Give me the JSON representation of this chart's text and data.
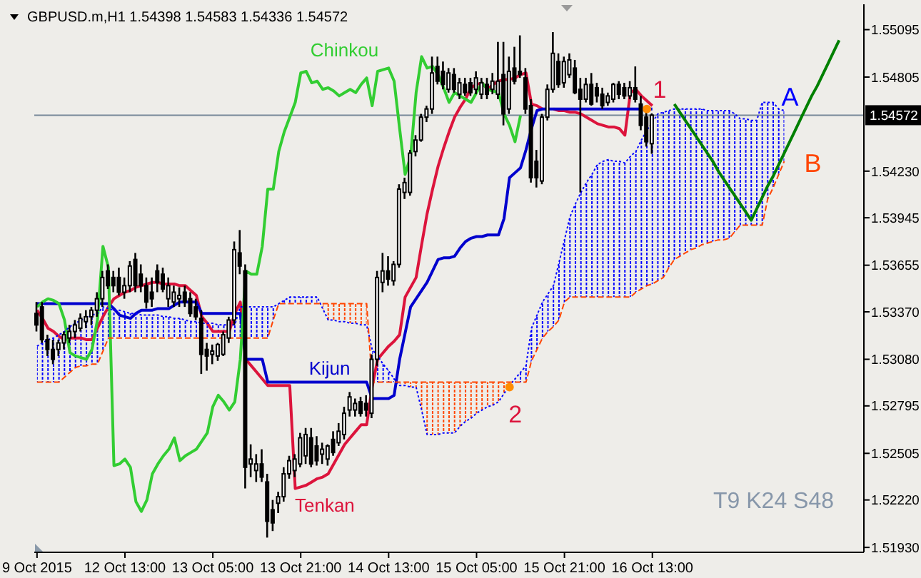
{
  "chart_data": {
    "type": "candlestick",
    "title": "GBPUSD.m,H1 1.54398 1.54583 1.54336 1.54572",
    "categories": [
      "9 Oct 2015",
      null,
      null,
      null,
      null,
      null,
      null,
      null,
      null,
      null,
      null,
      null,
      null,
      null,
      null,
      null,
      "12 Oct 13:00",
      null,
      null,
      null,
      null,
      null,
      null,
      null,
      null,
      null,
      null,
      null,
      null,
      null,
      null,
      null,
      "13 Oct 05:00",
      null,
      null,
      null,
      null,
      null,
      null,
      null,
      null,
      null,
      null,
      null,
      null,
      null,
      null,
      null,
      "13 Oct 21:00",
      null,
      null,
      null,
      null,
      null,
      null,
      null,
      null,
      null,
      null,
      null,
      null,
      null,
      null,
      null,
      "14 Oct 13:00",
      null,
      null,
      null,
      null,
      null,
      null,
      null,
      null,
      null,
      null,
      null,
      null,
      null,
      null,
      null,
      "15 Oct 05:00",
      null,
      null,
      null,
      null,
      null,
      null,
      null,
      null,
      null,
      null,
      null,
      null,
      null,
      null,
      null,
      "15 Oct 21:00",
      null,
      null,
      null,
      null,
      null,
      null,
      null,
      null,
      null,
      null,
      null,
      null,
      null,
      null,
      null,
      "16 Oct 13:00",
      null,
      null,
      null,
      null,
      null,
      null,
      null,
      null,
      null,
      null,
      null,
      null,
      null,
      null,
      null,
      null,
      null,
      null,
      null,
      null,
      null,
      null,
      null,
      null,
      null,
      null,
      null,
      null,
      null,
      null,
      null,
      null,
      null,
      null,
      null,
      null,
      null,
      null
    ],
    "ohlc": [
      [
        1.5336,
        1.5343,
        1.5325,
        1.5329
      ],
      [
        1.534,
        1.5343,
        1.5318,
        1.532
      ],
      [
        1.532,
        1.5323,
        1.531,
        1.5314
      ],
      [
        1.5314,
        1.532,
        1.5305,
        1.5308
      ],
      [
        1.5314,
        1.532,
        1.531,
        1.5318
      ],
      [
        1.5318,
        1.5325,
        1.5314,
        1.5323
      ],
      [
        1.5321,
        1.5329,
        1.5318,
        1.5325
      ],
      [
        1.5325,
        1.5332,
        1.5321,
        1.5329
      ],
      [
        1.5327,
        1.5336,
        1.5325,
        1.5333
      ],
      [
        1.5331,
        1.5338,
        1.5327,
        1.5334
      ],
      [
        1.5334,
        1.534,
        1.5329,
        1.5338
      ],
      [
        1.5338,
        1.5349,
        1.5334,
        1.5345
      ],
      [
        1.5345,
        1.5362,
        1.534,
        1.5358
      ],
      [
        1.5362,
        1.5366,
        1.5351,
        1.5353
      ],
      [
        1.5358,
        1.5362,
        1.5349,
        1.5353
      ],
      [
        1.5358,
        1.5364,
        1.5347,
        1.5349
      ],
      [
        1.5349,
        1.5358,
        1.5345,
        1.5353
      ],
      [
        1.5353,
        1.5368,
        1.5349,
        1.5365
      ],
      [
        1.5369,
        1.5373,
        1.5349,
        1.5353
      ],
      [
        1.536,
        1.5366,
        1.5349,
        1.5353
      ],
      [
        1.5353,
        1.5358,
        1.5339,
        1.5343
      ],
      [
        1.5349,
        1.5358,
        1.534,
        1.5345
      ],
      [
        1.5362,
        1.5366,
        1.5349,
        1.5355
      ],
      [
        1.536,
        1.5364,
        1.5349,
        1.5351
      ],
      [
        1.5345,
        1.5358,
        1.534,
        1.5353
      ],
      [
        1.5343,
        1.5353,
        1.534,
        1.5349
      ],
      [
        1.5345,
        1.5352,
        1.534,
        1.5347
      ],
      [
        1.5349,
        1.5353,
        1.534,
        1.5343
      ],
      [
        1.5345,
        1.5349,
        1.5334,
        1.5336
      ],
      [
        1.534,
        1.5345,
        1.5332,
        1.5334
      ],
      [
        1.5333,
        1.5338,
        1.5299,
        1.5311
      ],
      [
        1.5314,
        1.5318,
        1.5301,
        1.531
      ],
      [
        1.5311,
        1.5317,
        1.5305,
        1.5313
      ],
      [
        1.531,
        1.5318,
        1.5307,
        1.5317
      ],
      [
        1.5311,
        1.5325,
        1.531,
        1.5323
      ],
      [
        1.5321,
        1.5334,
        1.5318,
        1.5332
      ],
      [
        1.5332,
        1.538,
        1.5329,
        1.5375
      ],
      [
        1.5373,
        1.5387,
        1.536,
        1.5365
      ],
      [
        1.5362,
        1.5366,
        1.5229,
        1.5242
      ],
      [
        1.5244,
        1.5256,
        1.5236,
        1.5247
      ],
      [
        1.524,
        1.525,
        1.5233,
        1.5244
      ],
      [
        1.5244,
        1.5253,
        1.5233,
        1.5236
      ],
      [
        1.5233,
        1.5238,
        1.5199,
        1.5209
      ],
      [
        1.5216,
        1.5222,
        1.5203,
        1.5208
      ],
      [
        1.522,
        1.5227,
        1.5214,
        1.5224
      ],
      [
        1.5224,
        1.5242,
        1.5221,
        1.5238
      ],
      [
        1.5238,
        1.5249,
        1.5235,
        1.5246
      ],
      [
        1.524,
        1.525,
        1.5236,
        1.5247
      ],
      [
        1.5244,
        1.5263,
        1.5242,
        1.526
      ],
      [
        1.5249,
        1.5266,
        1.5244,
        1.5262
      ],
      [
        1.526,
        1.5266,
        1.5242,
        1.5244
      ],
      [
        1.5255,
        1.5261,
        1.5243,
        1.5246
      ],
      [
        1.525,
        1.5257,
        1.5244,
        1.5253
      ],
      [
        1.5247,
        1.5256,
        1.5243,
        1.5255
      ],
      [
        1.5259,
        1.5264,
        1.5249,
        1.5251
      ],
      [
        1.5257,
        1.5269,
        1.5255,
        1.5264
      ],
      [
        1.5262,
        1.5279,
        1.5259,
        1.5275
      ],
      [
        1.5277,
        1.5288,
        1.5273,
        1.5285
      ],
      [
        1.5277,
        1.5284,
        1.5273,
        1.5281
      ],
      [
        1.5282,
        1.5285,
        1.5273,
        1.5275
      ],
      [
        1.5281,
        1.5286,
        1.5273,
        1.5277
      ],
      [
        1.5275,
        1.5311,
        1.5272,
        1.5308
      ],
      [
        1.5308,
        1.5362,
        1.5304,
        1.5358
      ],
      [
        1.5355,
        1.5373,
        1.5349,
        1.5362
      ],
      [
        1.5362,
        1.5371,
        1.5353,
        1.5357
      ],
      [
        1.5356,
        1.5368,
        1.5353,
        1.5366
      ],
      [
        1.5366,
        1.5415,
        1.5364,
        1.5412
      ],
      [
        1.541,
        1.5419,
        1.5406,
        1.5416
      ],
      [
        1.541,
        1.5436,
        1.5408,
        1.5434
      ],
      [
        1.5435,
        1.5445,
        1.5432,
        1.5442
      ],
      [
        1.5442,
        1.5458,
        1.5441,
        1.5456
      ],
      [
        1.5456,
        1.5463,
        1.5453,
        1.5461
      ],
      [
        1.5461,
        1.5493,
        1.5458,
        1.5483
      ],
      [
        1.5487,
        1.5493,
        1.5476,
        1.5478
      ],
      [
        1.5484,
        1.549,
        1.5473,
        1.5476
      ],
      [
        1.5473,
        1.5486,
        1.5471,
        1.5483
      ],
      [
        1.5482,
        1.5486,
        1.5471,
        1.5473
      ],
      [
        1.547,
        1.548,
        1.5467,
        1.5477
      ],
      [
        1.5476,
        1.548,
        1.5469,
        1.5471
      ],
      [
        1.5477,
        1.548,
        1.5469,
        1.5471
      ],
      [
        1.5473,
        1.5484,
        1.547,
        1.548
      ],
      [
        1.547,
        1.548,
        1.5467,
        1.5477
      ],
      [
        1.5476,
        1.548,
        1.5467,
        1.547
      ],
      [
        1.5473,
        1.5483,
        1.547,
        1.5478
      ],
      [
        1.547,
        1.5502,
        1.5467,
        1.5478
      ],
      [
        1.5482,
        1.5502,
        1.5451,
        1.5458
      ],
      [
        1.5461,
        1.5493,
        1.5458,
        1.5484
      ],
      [
        1.5486,
        1.5499,
        1.5476,
        1.5478
      ],
      [
        1.5484,
        1.5506,
        1.548,
        1.5482
      ],
      [
        1.548,
        1.5486,
        1.5458,
        1.5461
      ],
      [
        1.5463,
        1.5467,
        1.5416,
        1.5419
      ],
      [
        1.5429,
        1.5436,
        1.5413,
        1.5419
      ],
      [
        1.5417,
        1.5458,
        1.5415,
        1.5456
      ],
      [
        1.5456,
        1.5476,
        1.5454,
        1.5473
      ],
      [
        1.5473,
        1.5508,
        1.5471,
        1.5495
      ],
      [
        1.549,
        1.5495,
        1.5474,
        1.5476
      ],
      [
        1.5477,
        1.5493,
        1.5474,
        1.549
      ],
      [
        1.5482,
        1.5495,
        1.548,
        1.5491
      ],
      [
        1.5486,
        1.5491,
        1.547,
        1.5471
      ],
      [
        1.5473,
        1.548,
        1.541,
        1.5467
      ],
      [
        1.5467,
        1.548,
        1.5465,
        1.5476
      ],
      [
        1.5476,
        1.5483,
        1.5463,
        1.5464
      ],
      [
        1.5474,
        1.5477,
        1.5465,
        1.5469
      ],
      [
        1.547,
        1.5474,
        1.5461,
        1.5463
      ],
      [
        1.5465,
        1.5471,
        1.5463,
        1.5469
      ],
      [
        1.5467,
        1.5477,
        1.5465,
        1.5476
      ],
      [
        1.5476,
        1.5478,
        1.5467,
        1.547
      ],
      [
        1.5474,
        1.5477,
        1.5467,
        1.5469
      ],
      [
        1.5469,
        1.5478,
        1.5467,
        1.5474
      ],
      [
        1.5474,
        1.5487,
        1.5465,
        1.5467
      ],
      [
        1.5464,
        1.5469,
        1.5448,
        1.5451
      ],
      [
        1.5456,
        1.546,
        1.5438,
        1.5441
      ],
      [
        1.54398,
        1.54583,
        1.54336,
        1.54572
      ],
      null,
      null,
      null,
      null,
      null,
      null,
      null,
      null,
      null,
      null,
      null,
      null,
      null,
      null,
      null,
      null,
      null,
      null,
      null,
      null,
      null,
      null,
      null,
      null,
      null,
      null,
      null,
      null,
      null,
      null,
      null,
      null,
      null,
      null,
      null,
      null,
      null,
      null
    ],
    "series": [
      {
        "name": "Tenkan",
        "type": "line",
        "color": "#dc143c",
        "line_style": "solid",
        "values": [
          1.5338,
          1.5333,
          1.5327,
          1.5325,
          1.5322,
          1.532,
          1.5321,
          1.5321,
          1.5321,
          1.532,
          1.532,
          1.5327,
          1.5334,
          1.534,
          1.5345,
          1.5347,
          1.5349,
          1.535,
          1.5352,
          1.5353,
          1.5354,
          1.5355,
          1.5355,
          1.5354,
          1.5354,
          1.5354,
          1.5353,
          1.5353,
          1.535,
          1.5347,
          1.5334,
          1.533,
          1.5325,
          1.5325,
          1.5325,
          1.5325,
          1.5336,
          1.5343,
          1.5308,
          1.5304,
          1.53,
          1.5296,
          1.5292,
          1.5292,
          1.5292,
          1.5292,
          1.5292,
          1.5229,
          1.523,
          1.5231,
          1.5233,
          1.5235,
          1.5236,
          1.5238,
          1.5244,
          1.525,
          1.5256,
          1.526,
          1.5264,
          1.5268,
          1.5268,
          1.5291,
          1.5308,
          1.5312,
          1.5316,
          1.5319,
          1.5323,
          1.5346,
          1.5352,
          1.5358,
          1.5378,
          1.5397,
          1.5412,
          1.5426,
          1.5437,
          1.5447,
          1.5456,
          1.5462,
          1.5467,
          1.5474,
          1.5476,
          1.5477,
          1.5473,
          1.5476,
          1.5478,
          1.5479,
          1.5479,
          1.548,
          1.5482,
          1.5483,
          1.5464,
          1.5463,
          1.5461,
          null,
          1.5461,
          1.546,
          1.546,
          1.5459,
          1.5459,
          1.5458,
          1.5456,
          1.5454,
          1.5452,
          1.5451,
          1.545,
          1.545,
          1.5449,
          1.5445,
          1.5471,
          1.5473,
          1.5469,
          1.5466,
          1.5463,
          null,
          null,
          null,
          null,
          null,
          null,
          null,
          null,
          null,
          null,
          null,
          null,
          null,
          null,
          null,
          null,
          null,
          null,
          null,
          null,
          null,
          null,
          null,
          null,
          null,
          null,
          null,
          null,
          null,
          null,
          null,
          null,
          null,
          null,
          null,
          null,
          null,
          null
        ]
      },
      {
        "name": "Kijun",
        "type": "line",
        "color": "#0000cd",
        "line_style": "solid",
        "values": [
          1.5342,
          1.5342,
          1.5342,
          1.5342,
          1.5342,
          1.5342,
          1.5342,
          1.5342,
          1.5342,
          1.5342,
          1.5342,
          1.5342,
          1.5342,
          1.5342,
          1.5339,
          1.5335,
          1.5334,
          1.5333,
          1.5336,
          1.5338,
          1.5338,
          1.5338,
          1.5339,
          1.5339,
          1.5339,
          1.5341,
          1.5343,
          1.5343,
          1.5343,
          1.5343,
          1.5336,
          1.5336,
          1.5336,
          1.5336,
          1.5336,
          1.5336,
          1.5336,
          1.5336,
          1.5308,
          1.5308,
          1.5308,
          1.5308,
          1.5294,
          1.5294,
          1.5294,
          1.5294,
          1.5294,
          1.5294,
          1.5294,
          1.5294,
          1.5294,
          1.5294,
          1.5294,
          1.5294,
          1.5294,
          1.5294,
          1.5294,
          1.5294,
          1.5294,
          1.5294,
          1.5294,
          1.5284,
          1.5284,
          1.5284,
          1.5284,
          1.5286,
          1.5308,
          1.5324,
          1.534,
          1.5345,
          1.535,
          1.5355,
          1.5362,
          1.5369,
          1.537,
          1.537,
          1.5371,
          1.5376,
          1.538,
          1.5382,
          1.5383,
          1.5383,
          1.5384,
          1.5384,
          1.5384,
          1.5394,
          1.5419,
          1.5422,
          1.5425,
          1.5436,
          1.5449,
          1.546,
          1.5461,
          1.5461,
          1.5461,
          1.5461,
          1.5461,
          1.5461,
          1.5461,
          1.5461,
          1.5461,
          1.5461,
          1.5461,
          1.5461,
          1.5461,
          1.5461,
          1.5461,
          1.5461,
          1.5461,
          1.5461,
          1.5461,
          1.5461,
          1.5461,
          null,
          null,
          null,
          null,
          null,
          null,
          null,
          null,
          null,
          null,
          null,
          null,
          null,
          null,
          null,
          null,
          null,
          null,
          null,
          null,
          null,
          null,
          null,
          null,
          null,
          null,
          null,
          null,
          null,
          null,
          null,
          null,
          null,
          null,
          null,
          null,
          null,
          null
        ]
      },
      {
        "name": "Chinkou",
        "type": "line",
        "color": "#32cd32",
        "line_style": "solid",
        "values": [
          1.534,
          1.5343,
          1.5345,
          1.5344,
          1.5342,
          1.5332,
          1.5312,
          1.531,
          1.5309,
          1.5308,
          1.5314,
          1.5332,
          1.5377,
          1.5364,
          1.5243,
          1.5244,
          1.5247,
          1.5242,
          1.5221,
          1.5215,
          1.5222,
          1.5238,
          1.5244,
          1.5249,
          1.5253,
          1.526,
          1.5246,
          1.5249,
          1.5251,
          1.5253,
          1.5258,
          1.5263,
          1.5279,
          1.5286,
          1.5282,
          1.5277,
          1.5282,
          1.5308,
          1.5362,
          1.536,
          1.536,
          1.5377,
          1.5412,
          1.5412,
          1.5435,
          1.5447,
          1.5456,
          1.5465,
          1.5483,
          1.5484,
          1.5477,
          1.5478,
          1.5473,
          1.5474,
          1.5472,
          1.5469,
          1.5471,
          1.5473,
          1.5471,
          1.5476,
          1.548,
          1.5463,
          1.5484,
          1.5485,
          1.5486,
          1.5478,
          1.5449,
          1.5421,
          1.5432,
          1.5471,
          1.5493,
          1.5486,
          1.5487,
          1.5482,
          1.5474,
          1.5465,
          1.5471,
          1.5469,
          1.5467,
          1.5465,
          1.5471,
          1.5477,
          1.5473,
          1.5472,
          1.5471,
          1.5458,
          1.5451,
          1.5441,
          1.5457,
          null,
          null,
          null,
          null,
          null,
          null,
          null,
          null,
          null,
          null,
          null,
          null,
          null,
          null,
          null,
          null,
          null,
          null,
          null,
          null,
          null,
          null,
          null,
          null,
          null,
          null,
          null,
          null,
          null,
          null,
          null,
          null,
          null,
          null,
          null,
          null,
          null,
          null,
          null,
          null,
          null,
          null,
          null,
          null,
          null,
          null,
          null,
          null,
          null,
          null,
          null,
          null,
          null,
          null,
          null,
          null,
          null,
          null,
          null,
          null,
          null,
          null
        ]
      },
      {
        "name": "A",
        "type": "line",
        "color": "#0000ff",
        "line_style": "dotted",
        "values": [
          1.5316,
          1.5318,
          1.532,
          1.5321,
          1.5323,
          1.5325,
          1.5328,
          1.533,
          1.5332,
          1.5333,
          1.5335,
          1.5336,
          1.534,
          1.5339,
          1.5338,
          1.5338,
          1.5337,
          1.5336,
          1.5336,
          1.5335,
          1.5335,
          1.5335,
          1.5335,
          1.5334,
          1.5334,
          1.5333,
          1.5333,
          1.5332,
          1.5331,
          1.5331,
          1.533,
          1.533,
          1.533,
          1.5329,
          1.5329,
          1.5329,
          1.5329,
          1.534,
          1.534,
          1.534,
          1.534,
          1.534,
          1.534,
          1.534,
          1.5342,
          1.5344,
          1.5346,
          1.5346,
          1.5346,
          1.5346,
          1.5346,
          1.5346,
          1.5339,
          1.5332,
          1.5332,
          1.5331,
          1.5331,
          1.533,
          1.533,
          1.5329,
          1.5329,
          1.5314,
          1.531,
          1.5305,
          1.5301,
          1.5296,
          1.5292,
          1.5292,
          1.5291,
          1.5291,
          1.5277,
          1.5262,
          1.5262,
          1.5262,
          1.5263,
          1.5263,
          1.5263,
          1.5267,
          1.527,
          1.5272,
          1.5275,
          1.5277,
          1.5279,
          1.528,
          1.5282,
          1.5287,
          1.5292,
          1.5296,
          1.53,
          1.5304,
          1.5327,
          1.5335,
          1.5343,
          1.5348,
          1.5353,
          1.5367,
          1.5381,
          1.5395,
          1.5403,
          1.541,
          1.5416,
          1.5421,
          1.5427,
          1.5429,
          1.543,
          1.5429,
          1.5429,
          1.5428,
          1.5432,
          1.5435,
          1.5442,
          1.5448,
          1.5453,
          1.5458,
          1.5459,
          1.546,
          1.5461,
          1.5461,
          1.5461,
          1.5461,
          1.5461,
          1.5461,
          1.546,
          1.546,
          1.546,
          1.546,
          1.546,
          1.5458,
          1.5455,
          1.5455,
          1.5454,
          1.5454,
          1.5465,
          1.5465,
          1.5465,
          1.5461,
          1.546,
          null,
          null,
          null,
          null,
          null,
          null,
          null,
          null,
          null,
          null,
          null,
          null,
          null,
          null
        ],
        "lower": [
          1.5294,
          1.5294,
          1.5294,
          1.5294,
          1.5294,
          1.5297,
          1.53,
          1.5303,
          1.5304,
          1.5304,
          1.5305,
          1.5305,
          1.5313,
          1.5321,
          1.5321,
          1.5321,
          1.5321,
          1.5321,
          1.5321,
          1.5321,
          1.5321,
          1.5321,
          1.5321,
          1.5321,
          1.5321,
          1.5321,
          1.5321,
          1.5321,
          1.5321,
          1.5321,
          1.5321,
          1.5321,
          1.5321,
          1.5321,
          1.5321,
          1.5321,
          1.5321,
          1.5321,
          1.5321,
          1.5321,
          1.5321,
          1.5321,
          1.5321,
          1.5332,
          1.5342,
          1.5342,
          1.5342,
          1.5342,
          1.5342,
          1.5342,
          1.5342,
          1.5342,
          null,
          null,
          null,
          null,
          null,
          null,
          null,
          null,
          null,
          1.5294,
          1.5294,
          1.5294,
          1.5294,
          1.5294,
          null,
          null,
          null,
          null,
          null,
          null,
          null,
          null,
          null,
          null,
          null,
          null,
          null,
          null,
          null,
          null,
          null,
          null,
          null,
          null,
          null,
          1.5294,
          1.5294,
          1.5294,
          1.5307,
          1.5314,
          1.5321,
          1.5325,
          1.5328,
          1.5332,
          1.5343,
          1.5346,
          1.5346,
          1.5346,
          1.5346,
          1.5346,
          1.5346,
          1.5346,
          1.5346,
          1.5346,
          1.5346,
          1.5346,
          1.5346,
          1.5349,
          1.5351,
          1.5353,
          1.5354,
          1.5356,
          1.5358,
          1.5364,
          1.5369,
          1.5371,
          1.5373,
          1.5375,
          1.5376,
          1.5378,
          1.5379,
          1.538,
          1.5381,
          1.5381,
          1.5382,
          1.5386,
          1.539,
          1.539,
          1.539,
          1.539,
          1.539,
          1.5406,
          1.5413,
          1.5421,
          1.5429,
          null,
          null,
          null,
          null,
          null,
          null,
          null,
          null,
          null,
          null,
          null,
          null,
          null,
          null
        ],
        "upper": [
          1.5316,
          1.5318,
          1.532,
          1.5321,
          1.5323,
          1.5325,
          1.5328,
          1.533,
          1.5332,
          1.5333,
          1.5335,
          1.5336,
          1.534,
          1.5339,
          1.5338,
          1.5338,
          1.5337,
          1.5336,
          1.5336,
          1.5335,
          1.5335,
          1.5335,
          1.5335,
          1.5334,
          1.5334,
          1.5333,
          1.5333,
          1.5332,
          1.5331,
          1.5331,
          1.533,
          1.533,
          1.533,
          1.5329,
          1.5329,
          1.5329,
          1.5329,
          1.534,
          1.534,
          1.534,
          1.534,
          1.534,
          1.534,
          1.534,
          1.5342,
          1.5344,
          1.5346,
          1.5346,
          1.5346,
          1.5346,
          1.5346,
          1.5346,
          null,
          null,
          null,
          null,
          null,
          null,
          null,
          null,
          null,
          1.5314,
          1.531,
          1.5305,
          1.5301,
          1.5296,
          null,
          null,
          null,
          null,
          null,
          null,
          null,
          null,
          null,
          null,
          null,
          null,
          null,
          null,
          null,
          null,
          null,
          null,
          null,
          null,
          null,
          1.5296,
          1.53,
          1.5304,
          1.5327,
          1.5335,
          1.5343,
          1.5348,
          1.5353,
          1.5367,
          1.5381,
          1.5395,
          1.5403,
          1.541,
          1.5416,
          1.5421,
          1.5427,
          1.5429,
          1.543,
          1.5429,
          1.5429,
          1.5428,
          1.5432,
          1.5435,
          1.5442,
          1.5448,
          1.5453,
          1.5458,
          1.5459,
          1.546,
          1.5461,
          1.5461,
          1.5461,
          1.5461,
          1.5461,
          1.5461,
          1.546,
          1.546,
          1.546,
          1.546,
          1.546,
          1.5458,
          1.5455,
          1.5455,
          1.5454,
          1.5454,
          1.5465,
          1.5465,
          1.5465,
          1.5461,
          1.546,
          null,
          null,
          null,
          null,
          null,
          null,
          null,
          null,
          null,
          null,
          null,
          null,
          null,
          null
        ]
      },
      {
        "name": "B",
        "type": "line",
        "color": "#ff4500",
        "line_style": "dashed",
        "values": [
          1.5294,
          1.5294,
          1.5294,
          1.5294,
          1.5294,
          1.5297,
          1.53,
          1.5303,
          1.5304,
          1.5304,
          1.5305,
          1.5305,
          1.5313,
          1.5321,
          1.5321,
          1.5321,
          1.5321,
          1.5321,
          1.5321,
          1.5321,
          1.5321,
          1.5321,
          1.5321,
          1.5321,
          1.5321,
          1.5321,
          1.5321,
          1.5321,
          1.5321,
          1.5321,
          1.5321,
          1.5321,
          1.5321,
          1.5321,
          1.5321,
          1.5321,
          1.5321,
          1.5321,
          1.5321,
          1.5321,
          1.5321,
          1.5321,
          1.5321,
          1.5332,
          1.5342,
          1.5342,
          1.5342,
          1.5342,
          1.5342,
          1.5342,
          1.5342,
          1.5342,
          1.5342,
          1.5342,
          1.5342,
          1.5342,
          1.5342,
          1.5342,
          1.5342,
          1.5342,
          1.5342,
          1.5294,
          1.5294,
          1.5294,
          1.5294,
          1.5294,
          1.5294,
          1.5294,
          1.5294,
          1.5294,
          1.5294,
          1.5294,
          1.5294,
          1.5294,
          1.5294,
          1.5294,
          1.5294,
          1.5294,
          1.5294,
          1.5294,
          1.5294,
          1.5294,
          1.5294,
          1.5294,
          1.5294,
          1.5294,
          1.5294,
          1.5294,
          1.5294,
          1.5294,
          1.5307,
          1.5314,
          1.5321,
          1.5325,
          1.5328,
          1.5332,
          1.5343,
          1.5346,
          1.5346,
          1.5346,
          1.5346,
          1.5346,
          1.5346,
          1.5346,
          1.5346,
          1.5346,
          1.5346,
          1.5346,
          1.5346,
          1.5349,
          1.5351,
          1.5353,
          1.5354,
          1.5356,
          1.5358,
          1.5364,
          1.5369,
          1.5371,
          1.5373,
          1.5375,
          1.5376,
          1.5378,
          1.5379,
          1.538,
          1.5381,
          1.5381,
          1.5382,
          1.5386,
          1.539,
          1.539,
          1.539,
          1.539,
          1.539,
          1.5406,
          1.5413,
          1.5421,
          1.5429,
          null,
          null,
          null,
          null,
          null,
          null,
          null,
          null,
          null,
          null,
          null,
          null,
          null,
          null
        ],
        "lower": [
          null,
          null,
          null,
          null,
          null,
          null,
          null,
          null,
          null,
          null,
          null,
          null,
          null,
          null,
          null,
          null,
          null,
          null,
          null,
          null,
          null,
          null,
          null,
          null,
          null,
          null,
          null,
          null,
          null,
          null,
          null,
          null,
          null,
          null,
          null,
          null,
          null,
          null,
          null,
          null,
          null,
          null,
          null,
          null,
          null,
          null,
          null,
          null,
          null,
          null,
          null,
          null,
          1.5339,
          1.5332,
          1.5332,
          1.5331,
          1.5331,
          1.533,
          1.533,
          1.5329,
          1.5329,
          null,
          null,
          null,
          null,
          null,
          1.5292,
          1.5292,
          1.5291,
          1.5291,
          1.5277,
          1.5262,
          1.5262,
          1.5262,
          1.5263,
          1.5263,
          1.5263,
          1.5267,
          1.527,
          1.5272,
          1.5275,
          1.5277,
          1.5279,
          1.528,
          1.5282,
          1.5287,
          1.5292,
          null,
          null,
          null,
          null,
          null,
          null,
          null,
          null,
          null,
          null,
          null,
          null,
          null,
          null,
          null,
          null,
          null,
          null,
          null,
          null,
          null,
          null,
          null,
          null,
          null,
          null,
          null,
          null,
          null,
          null,
          null,
          null,
          null,
          null,
          null,
          null,
          null,
          null,
          null,
          null,
          null,
          null,
          null,
          null,
          null,
          null,
          null,
          null,
          null,
          null,
          null,
          null,
          null,
          null,
          null,
          null,
          null,
          null,
          null,
          null,
          null,
          null,
          null,
          null
        ],
        "upper": [
          null,
          null,
          null,
          null,
          null,
          null,
          null,
          null,
          null,
          null,
          null,
          null,
          null,
          null,
          null,
          null,
          null,
          null,
          null,
          null,
          null,
          null,
          null,
          null,
          null,
          null,
          null,
          null,
          null,
          null,
          null,
          null,
          null,
          null,
          null,
          null,
          null,
          null,
          null,
          null,
          null,
          null,
          null,
          null,
          null,
          null,
          null,
          null,
          null,
          null,
          null,
          null,
          1.5342,
          1.5342,
          1.5342,
          1.5342,
          1.5342,
          1.5342,
          1.5342,
          1.5342,
          1.5342,
          null,
          null,
          null,
          null,
          null,
          1.5294,
          1.5294,
          1.5294,
          1.5294,
          1.5294,
          1.5294,
          1.5294,
          1.5294,
          1.5294,
          1.5294,
          1.5294,
          1.5294,
          1.5294,
          1.5294,
          1.5294,
          1.5294,
          1.5294,
          1.5294,
          1.5294,
          1.5294,
          1.5294,
          null,
          null,
          null,
          null,
          null,
          null,
          null,
          null,
          null,
          null,
          null,
          null,
          null,
          null,
          null,
          null,
          null,
          null,
          null,
          null,
          null,
          null,
          null,
          null,
          null,
          null,
          null,
          null,
          null,
          null,
          null,
          null,
          null,
          null,
          null,
          null,
          null,
          null,
          null,
          null,
          null,
          null,
          null,
          null,
          null,
          null,
          null,
          null,
          null,
          null,
          null,
          null,
          null,
          null,
          null,
          null,
          null,
          null,
          null,
          null,
          null,
          null,
          null,
          null
        ]
      },
      {
        "type": "line",
        "color": "#008000",
        "line_style": "solid",
        "values": [
          null,
          null,
          null,
          null,
          null,
          null,
          null,
          null,
          null,
          null,
          null,
          null,
          null,
          null,
          null,
          null,
          null,
          null,
          null,
          null,
          null,
          null,
          null,
          null,
          null,
          null,
          null,
          null,
          null,
          null,
          null,
          null,
          null,
          null,
          null,
          null,
          null,
          null,
          null,
          null,
          null,
          null,
          null,
          null,
          null,
          null,
          null,
          null,
          null,
          null,
          null,
          null,
          null,
          null,
          null,
          null,
          null,
          null,
          null,
          null,
          null,
          null,
          null,
          null,
          null,
          null,
          null,
          null,
          null,
          null,
          null,
          null,
          null,
          null,
          null,
          null,
          null,
          null,
          null,
          null,
          null,
          null,
          null,
          null,
          null,
          null,
          null,
          null,
          null,
          null,
          null,
          null,
          null,
          null,
          null,
          null,
          null,
          null,
          null,
          null,
          null,
          null,
          null,
          null,
          null,
          null,
          null,
          null,
          null,
          null,
          null,
          null,
          null,
          null,
          null,
          null,
          1.5464,
          1.5459,
          1.5454,
          1.5449,
          1.5444,
          1.5439,
          1.5434,
          1.5429,
          1.5423,
          1.5418,
          1.5413,
          1.5408,
          1.5403,
          1.5398,
          1.5393,
          1.54,
          1.5407,
          1.5414,
          1.542,
          1.5427,
          1.5434,
          1.5441,
          1.5448,
          1.5455,
          1.5462,
          1.5469,
          1.5475,
          1.5482,
          1.5489,
          1.5496,
          1.5503,
          null,
          null,
          null,
          null
        ]
      }
    ],
    "ylim": [
      1.519,
      1.5525
    ],
    "yticks": [
      {
        "value": 1.5193,
        "label": "1.51930"
      },
      {
        "value": 1.5222,
        "label": "1.52220"
      },
      1.52505,
      1.52795,
      {
        "value": 1.5308,
        "label": "1.53080"
      },
      {
        "value": 1.5337,
        "label": "1.53370"
      },
      1.53655,
      1.53945,
      {
        "value": 1.5423,
        "label": "1.54230"
      },
      1.54805,
      1.55095
    ],
    "ref_lines": [
      {
        "axis": "y",
        "value": 1.54572,
        "label": "1.54572",
        "color": "#778899"
      }
    ],
    "annotations": [
      "T9 K24 S48",
      {
        "text": "1",
        "y": 1.5461
      },
      {
        "text": "2",
        "y": 1.5291
      }
    ]
  }
}
